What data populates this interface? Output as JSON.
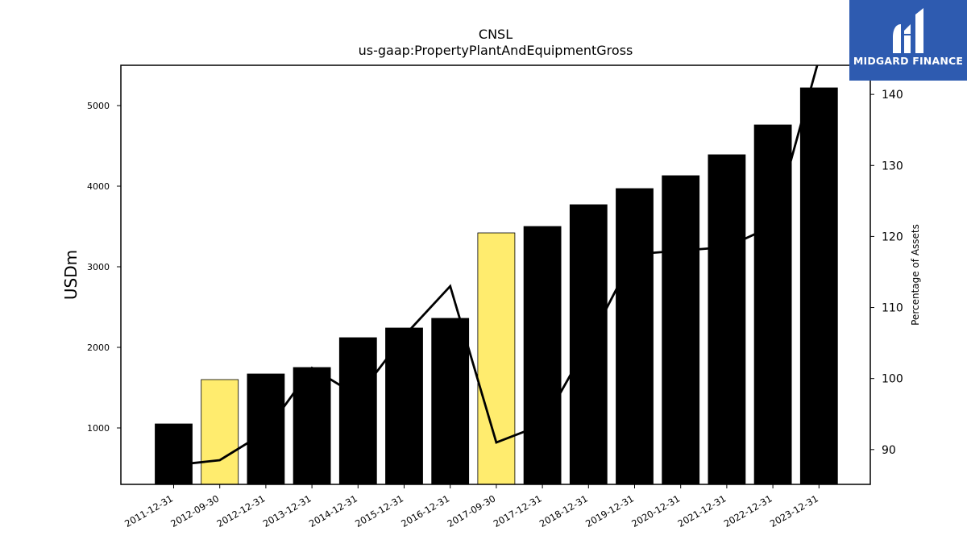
{
  "brand": {
    "name": "MIDGARD FINANCE",
    "color": "#2e5bb0"
  },
  "chart_data": {
    "type": "bar",
    "title": "CNSL",
    "subtitle": "us-gaap:PropertyPlantAndEquipmentGross",
    "ylabel": "USDm",
    "y2label": "Percentage of Assets",
    "ylim": [
      300,
      5500
    ],
    "y2lim": [
      85.1,
      144.1
    ],
    "yticks": [
      1000,
      2000,
      3000,
      4000,
      5000
    ],
    "y2ticks": [
      90,
      100,
      110,
      120,
      130,
      140
    ],
    "grid": false,
    "categories": [
      "2011-12-31",
      "2012-09-30",
      "2012-12-31",
      "2013-12-31",
      "2014-12-31",
      "2015-12-31",
      "2016-12-31",
      "2017-09-30",
      "2017-12-31",
      "2018-12-31",
      "2019-12-31",
      "2020-12-31",
      "2021-12-31",
      "2022-12-31",
      "2023-12-31"
    ],
    "series": [
      {
        "type": "bar",
        "values": [
          1050,
          1600,
          1670,
          1750,
          2120,
          2240,
          2360,
          3420,
          3500,
          3770,
          3970,
          4130,
          4390,
          4760,
          5220
        ],
        "colors": [
          "#000000",
          "#ffec6e",
          "#000000",
          "#000000",
          "#000000",
          "#000000",
          "#000000",
          "#ffec6e",
          "#000000",
          "#000000",
          "#000000",
          "#000000",
          "#000000",
          "#000000",
          "#000000"
        ]
      },
      {
        "type": "line",
        "axis": "right",
        "color": "#000000",
        "values": [
          87.8,
          88.5,
          92.5,
          101.5,
          97.5,
          106.0,
          113.0,
          91.0,
          93.5,
          105.0,
          117.5,
          118.0,
          118.5,
          121.5,
          145.0
        ]
      }
    ]
  }
}
